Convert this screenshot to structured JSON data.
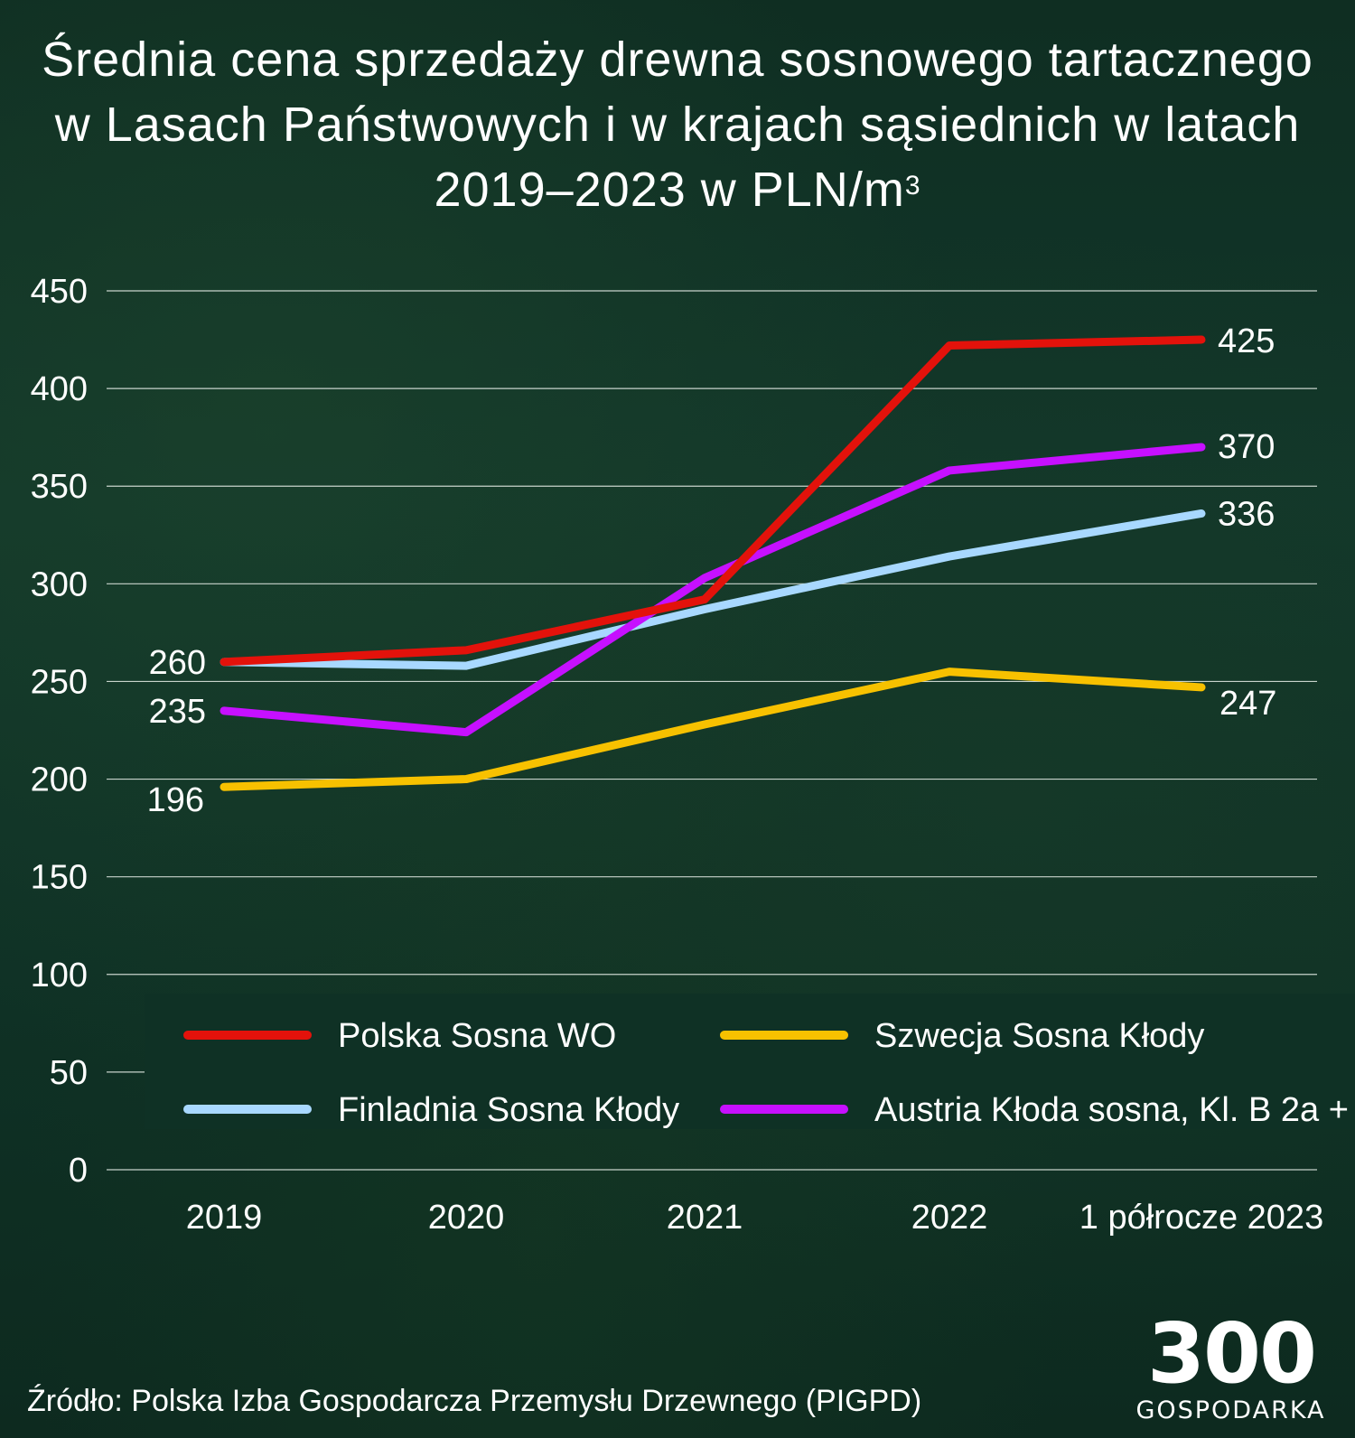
{
  "title_main": "Średnia cena sprzedaży drewna sosnowego tartacznego w Lasach Państwowych i w krajach sąsiednich w latach 2019–2023 w PLN/m",
  "title_sup": "3",
  "source": "Źródło: Polska Izba Gospodarcza Przemysłu Drzewnego (PIGPD)",
  "logo": {
    "mark": "300",
    "word": "GOSPODARKA"
  },
  "chart_data": {
    "type": "line",
    "title": "Średnia cena sprzedaży drewna sosnowego tartacznego w Lasach Państwowych i w krajach sąsiednich w latach 2019–2023 w PLN/m³",
    "xlabel": "",
    "ylabel": "",
    "categories": [
      "2019",
      "2020",
      "2021",
      "2022",
      "1 półrocze 2023"
    ],
    "ylim": [
      0,
      450
    ],
    "yticks": [
      "0",
      "50",
      "100",
      "150",
      "200",
      "250",
      "300",
      "350",
      "400",
      "450"
    ],
    "grid": true,
    "legend_position": "bottom",
    "series": [
      {
        "name": "Polska Sosna WO",
        "color": "#e3120b",
        "values": [
          260,
          266,
          292,
          422,
          425
        ]
      },
      {
        "name": "Szwecja Sosna Kłody",
        "color": "#f7c100",
        "values": [
          196,
          200,
          228,
          255,
          247
        ]
      },
      {
        "name": "Finladnia Sosna Kłody",
        "color": "#a8d8ff",
        "values": [
          260,
          258,
          287,
          314,
          336
        ]
      },
      {
        "name": "Austria Kłoda sosna, Kl. B 2a +",
        "color": "#c610ff",
        "values": [
          235,
          224,
          303,
          358,
          370
        ]
      }
    ],
    "data_labels": [
      {
        "series": 0,
        "point": 0,
        "text": "260"
      },
      {
        "series": 3,
        "point": 0,
        "text": "235"
      },
      {
        "series": 1,
        "point": 0,
        "text": "196"
      },
      {
        "series": 0,
        "point": 4,
        "text": "425"
      },
      {
        "series": 3,
        "point": 4,
        "text": "370"
      },
      {
        "series": 2,
        "point": 4,
        "text": "336"
      },
      {
        "series": 1,
        "point": 4,
        "text": "247"
      }
    ]
  }
}
